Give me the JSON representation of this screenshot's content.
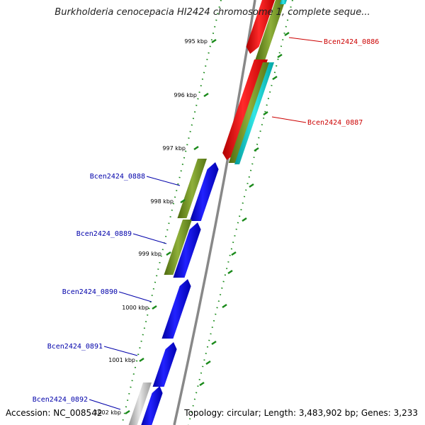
{
  "header": {
    "title": "Burkholderia cenocepacia HI2424 chromosome 1, complete seque..."
  },
  "footer": {
    "accession_label": "Accession:",
    "accession": "NC_008542",
    "topology_label": "Topology:",
    "topology": "circular",
    "length_label": "Length:",
    "length": "3,483,902 bp",
    "genes_label": "Genes:",
    "genes": "3,233"
  },
  "map": {
    "ticks": [
      "995 kbp",
      "996 kbp",
      "997 kbp",
      "998 kbp",
      "999 kbp",
      "1000 kbp",
      "1001 kbp",
      "1002 kbp"
    ],
    "forward_genes": [
      "Bcen2424_0886",
      "Bcen2424_0887"
    ],
    "reverse_genes": [
      "Bcen2424_0888",
      "Bcen2424_0889",
      "Bcen2424_0890",
      "Bcen2424_0891",
      "Bcen2424_0892"
    ]
  },
  "colors": {
    "forward_cds": "#ff0000",
    "reverse_cds": "#0000ff",
    "cog_track": "#6b8e23",
    "gc_track": "#00cccc",
    "gray_feature": "#b0b0b0",
    "backbone": "#888888",
    "dotted_guides": "#1a8a1a",
    "forward_label": "#cc0000",
    "reverse_label": "#0000aa"
  }
}
